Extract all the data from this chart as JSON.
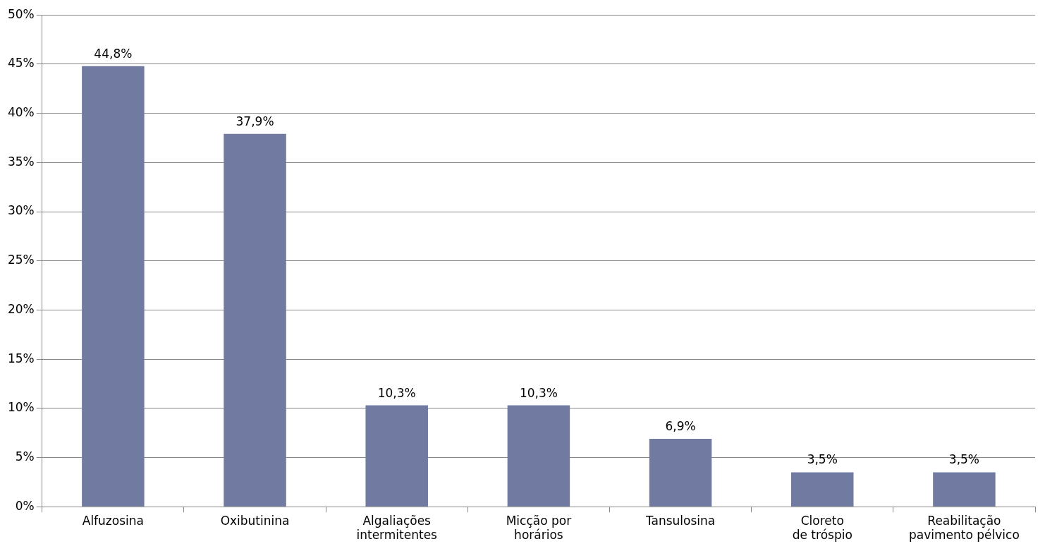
{
  "chart_data": {
    "type": "bar",
    "categories": [
      "Alfuzosina",
      "Oxibutinina",
      "Algaliações intermitentes",
      "Micção por horários",
      "Tansulosina",
      "Cloreto de tróspio",
      "Reabilitação pavimento pélvico"
    ],
    "values": [
      44.8,
      37.9,
      10.3,
      10.3,
      6.9,
      3.5,
      3.5
    ],
    "value_labels": [
      "44,8%",
      "37,9%",
      "10,3%",
      "10,3%",
      "6,9%",
      "3,5%",
      "3,5%"
    ],
    "color": "#717ba1",
    "ylim": [
      0,
      50
    ],
    "yticks": [
      {
        "value": 0,
        "label": "0%"
      },
      {
        "value": 5,
        "label": "5%"
      },
      {
        "value": 10,
        "label": "10%"
      },
      {
        "value": 15,
        "label": "15%"
      },
      {
        "value": 20,
        "label": "20%"
      },
      {
        "value": 25,
        "label": "25%"
      },
      {
        "value": 30,
        "label": "30%"
      },
      {
        "value": 35,
        "label": "35%"
      },
      {
        "value": 40,
        "label": "40%"
      },
      {
        "value": 45,
        "label": "45%"
      },
      {
        "value": 50,
        "label": "50%"
      }
    ],
    "grid": "y",
    "legend": false
  }
}
